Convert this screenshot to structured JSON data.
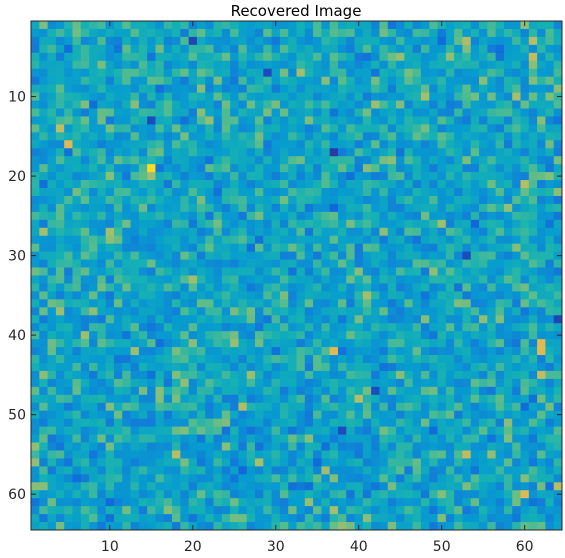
{
  "chart_data": {
    "type": "heatmap",
    "title": "Recovered Image",
    "xlabel": "",
    "ylabel": "",
    "rows": 64,
    "cols": 64,
    "xlim": [
      0.5,
      64.5
    ],
    "ylim": [
      0.5,
      64.5
    ],
    "y_direction": "reverse",
    "x_ticks": [
      10,
      20,
      30,
      40,
      50,
      60
    ],
    "y_ticks": [
      10,
      20,
      30,
      40,
      50,
      60
    ],
    "x_tick_labels": [
      "10",
      "20",
      "30",
      "40",
      "50",
      "60"
    ],
    "y_tick_labels": [
      "10",
      "20",
      "30",
      "40",
      "50",
      "60"
    ],
    "colormap": "parula",
    "value_range": [
      0,
      1
    ],
    "grid": false,
    "values_note": "64x64 pixel intensities rendered with parula colormap; mostly mid-range blue/cyan/green values with scattered yellow highlights",
    "highlights": [
      {
        "row": 19,
        "col": 15,
        "value": 0.95
      },
      {
        "row": 16,
        "col": 5,
        "value": 0.85
      },
      {
        "row": 14,
        "col": 4,
        "value": 0.8
      },
      {
        "row": 42,
        "col": 37,
        "value": 0.85
      },
      {
        "row": 41,
        "col": 62,
        "value": 0.85
      },
      {
        "row": 42,
        "col": 62,
        "value": 0.85
      },
      {
        "row": 5,
        "col": 61,
        "value": 0.8
      },
      {
        "row": 3,
        "col": 61,
        "value": 0.78
      },
      {
        "row": 55,
        "col": 53,
        "value": 0.8
      },
      {
        "row": 60,
        "col": 60,
        "value": 0.85
      },
      {
        "row": 59,
        "col": 64,
        "value": 0.78
      },
      {
        "row": 35,
        "col": 41,
        "value": 0.75
      },
      {
        "row": 45,
        "col": 62,
        "value": 0.8
      },
      {
        "row": 48,
        "col": 40,
        "value": 0.78
      },
      {
        "row": 62,
        "col": 37,
        "value": 0.75
      },
      {
        "row": 27,
        "col": 2,
        "value": 0.75
      },
      {
        "row": 55,
        "col": 18,
        "value": 0.78
      },
      {
        "row": 22,
        "col": 64,
        "value": 0.72
      }
    ],
    "lowlights": [
      {
        "row": 17,
        "col": 37,
        "value": 0.05
      },
      {
        "row": 3,
        "col": 20,
        "value": 0.08
      },
      {
        "row": 13,
        "col": 15,
        "value": 0.1
      },
      {
        "row": 38,
        "col": 64,
        "value": 0.08
      },
      {
        "row": 30,
        "col": 53,
        "value": 0.1
      },
      {
        "row": 52,
        "col": 38,
        "value": 0.1
      },
      {
        "row": 47,
        "col": 42,
        "value": 0.1
      },
      {
        "row": 7,
        "col": 29,
        "value": 0.1
      }
    ]
  }
}
